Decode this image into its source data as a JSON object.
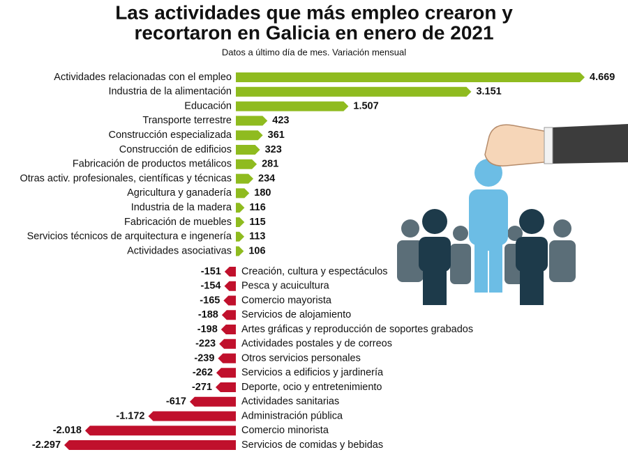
{
  "chart_data": {
    "type": "diverging-bar",
    "title": [
      "Las actividades que más empleo crearon y",
      "recortaron en Galicia en enero de 2021"
    ],
    "subtitle": "Datos a último día de mes. Variación mensual",
    "categories": [
      "Actividades relacionadas con el empleo",
      "Industria de la alimentación",
      "Educación",
      "Transporte terrestre",
      "Construcción especializada",
      "Construcción de edificios",
      "Fabricación de productos metálicos",
      "Otras activ. profesionales, científicas y técnicas",
      "Agricultura y ganadería",
      "Industria de la madera",
      "Fabricación de muebles",
      "Servicios técnicos de arquitectura e ingenería",
      "Actividades asociativas",
      "Creación, cultura y espectáculos",
      "Pesca y acuicultura",
      "Comercio mayorista",
      "Servicios de alojamiento",
      "Artes gráficas y reproducción de soportes grabados",
      "Actividades postales y de correos",
      "Otros servicios personales",
      "Servicios a edificios y jardinería",
      "Deporte, ocio y entretenimiento",
      "Actividades sanitarias",
      "Administración pública",
      "Comercio minorista",
      "Servicios de comidas y bebidas"
    ],
    "values": [
      4669,
      3151,
      1507,
      423,
      361,
      323,
      281,
      234,
      180,
      116,
      115,
      113,
      106,
      -151,
      -154,
      -165,
      -188,
      -198,
      -223,
      -239,
      -262,
      -271,
      -617,
      -1172,
      -2018,
      -2297
    ],
    "value_labels": [
      "4.669",
      "3.151",
      "1.507",
      "423",
      "361",
      "323",
      "281",
      "234",
      "180",
      "116",
      "115",
      "113",
      "106",
      "-151",
      "-154",
      "-165",
      "-188",
      "-198",
      "-223",
      "-239",
      "-262",
      "-271",
      "-617",
      "-1.172",
      "-2.018",
      "-2.297"
    ],
    "positive_color": "#8fbb1f",
    "negative_color": "#c0102c"
  }
}
